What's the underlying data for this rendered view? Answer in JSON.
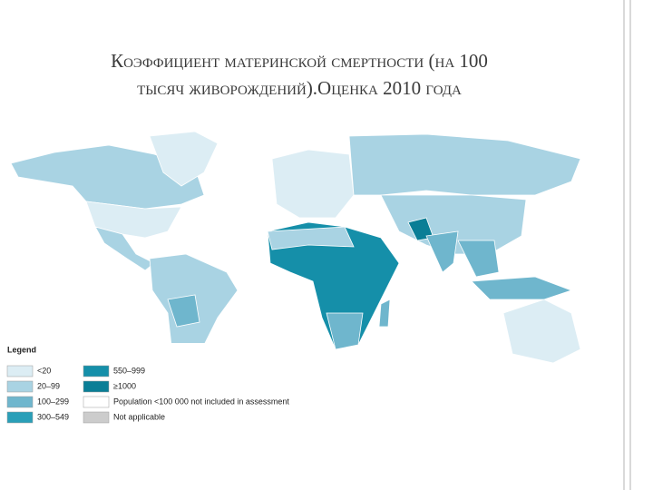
{
  "title": {
    "lines": [
      "Коэффициент материнской смертности (на 100",
      "тысяч живорождений).Оценка 2010 года"
    ]
  },
  "legend": {
    "title": "Legend",
    "items": [
      {
        "label": "<20",
        "color": "#dcedf4"
      },
      {
        "label": "20–99",
        "color": "#a9d3e3"
      },
      {
        "label": "100–299",
        "color": "#6fb6cd"
      },
      {
        "label": "300–549",
        "color": "#2a9fb8"
      },
      {
        "label": "550–999",
        "color": "#158fa9"
      },
      {
        "label": "≥1000",
        "color": "#0a7e96"
      },
      {
        "label": "Population <100 000 not included in assessment",
        "color": "#ffffff"
      },
      {
        "label": "Not applicable",
        "color": "#cccccc"
      }
    ]
  }
}
